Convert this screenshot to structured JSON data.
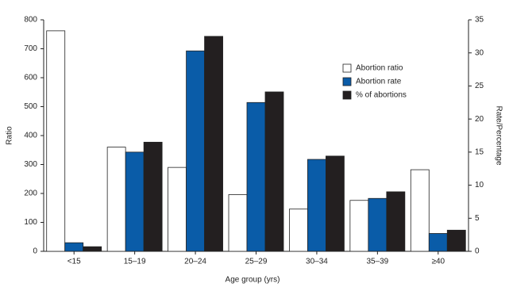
{
  "chart_data": {
    "type": "bar",
    "categories": [
      "<15",
      "15–19",
      "20–24",
      "25–29",
      "30–34",
      "35–39",
      "≥40"
    ],
    "series": [
      {
        "name": "Abortion ratio",
        "color": "#ffffff",
        "values": [
          762,
          360,
          290,
          196,
          146,
          176,
          282
        ]
      },
      {
        "name": "Abortion rate",
        "color": "#0a5ca8",
        "axis": "y2",
        "values": [
          1.3,
          15.0,
          30.3,
          22.5,
          13.9,
          8.0,
          2.7
        ]
      },
      {
        "name": "% of abortions",
        "color": "#231f20",
        "axis": "y2",
        "values": [
          0.7,
          16.5,
          32.5,
          24.1,
          14.4,
          9.0,
          3.2
        ]
      }
    ],
    "xlabel": "Age group (yrs)",
    "ylabel": "Ratio",
    "y2label": "Rate/Percentage",
    "ylim": [
      0,
      800
    ],
    "yticks": [
      0,
      100,
      200,
      300,
      400,
      500,
      600,
      700,
      800
    ],
    "y2lim": [
      0,
      35
    ],
    "y2ticks": [
      0,
      5,
      10,
      15,
      20,
      25,
      30,
      35
    ],
    "legend": "upper right",
    "grid": false
  }
}
